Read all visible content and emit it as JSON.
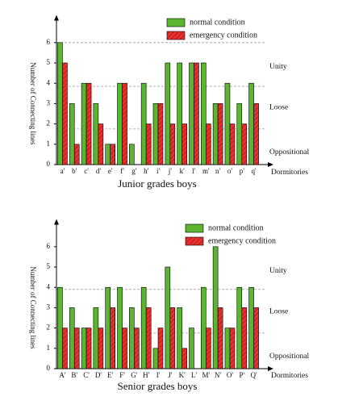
{
  "chart_data": [
    {
      "type": "bar",
      "title": "Junior grades boys",
      "xlabel": "Dormitories",
      "ylabel": "Number of Connecting lines",
      "categories": [
        "a'",
        "b'",
        "c'",
        "d'",
        "e'",
        "f'",
        "g'",
        "h'",
        "i'",
        "j'",
        "k'",
        "l'",
        "m'",
        "n'",
        "o'",
        "p'",
        "q'"
      ],
      "series": [
        {
          "name": "normal condition",
          "color": "#5cb531",
          "values": [
            6,
            3,
            4,
            3,
            1,
            4,
            1,
            4,
            3,
            5,
            5,
            5,
            5,
            3,
            4,
            3,
            4
          ]
        },
        {
          "name": "emergency condition",
          "color": "#e8312f",
          "values": [
            5,
            1,
            4,
            2,
            1,
            4,
            0,
            2,
            3,
            2,
            2,
            5,
            2,
            3,
            2,
            2,
            3
          ]
        }
      ],
      "ylim": [
        0,
        7
      ],
      "yticks": [
        0,
        1,
        2,
        3,
        4,
        5,
        6
      ],
      "reference_lines": [
        6,
        3.85,
        1.75
      ],
      "annotations": [
        "Unity",
        "Loose",
        "Oppositional"
      ]
    },
    {
      "type": "bar",
      "title": "Senior grades boys",
      "xlabel": "Dormitories",
      "ylabel": "Number of Connecting lines",
      "categories": [
        "A'",
        "B'",
        "C'",
        "D'",
        "E'",
        "F'",
        "G'",
        "H'",
        "I'",
        "J'",
        "K'",
        "L'",
        "M'",
        "N'",
        "O'",
        "P'",
        "Q'"
      ],
      "series": [
        {
          "name": "normal condition",
          "color": "#5cb531",
          "values": [
            4,
            3,
            2,
            3,
            4,
            4,
            3,
            4,
            1,
            5,
            3,
            2,
            4,
            6,
            2,
            4,
            4
          ]
        },
        {
          "name": "emergency condition",
          "color": "#e8312f",
          "values": [
            2,
            2,
            2,
            2,
            3,
            2,
            2,
            3,
            2,
            3,
            1,
            0,
            2,
            3,
            2,
            3,
            3
          ]
        }
      ],
      "ylim": [
        0,
        7
      ],
      "yticks": [
        0,
        1,
        2,
        3,
        4,
        5,
        6
      ],
      "reference_lines": [
        3.9,
        1.75
      ],
      "annotations": [
        "Unity",
        "Loose",
        "Oppositional"
      ]
    }
  ]
}
